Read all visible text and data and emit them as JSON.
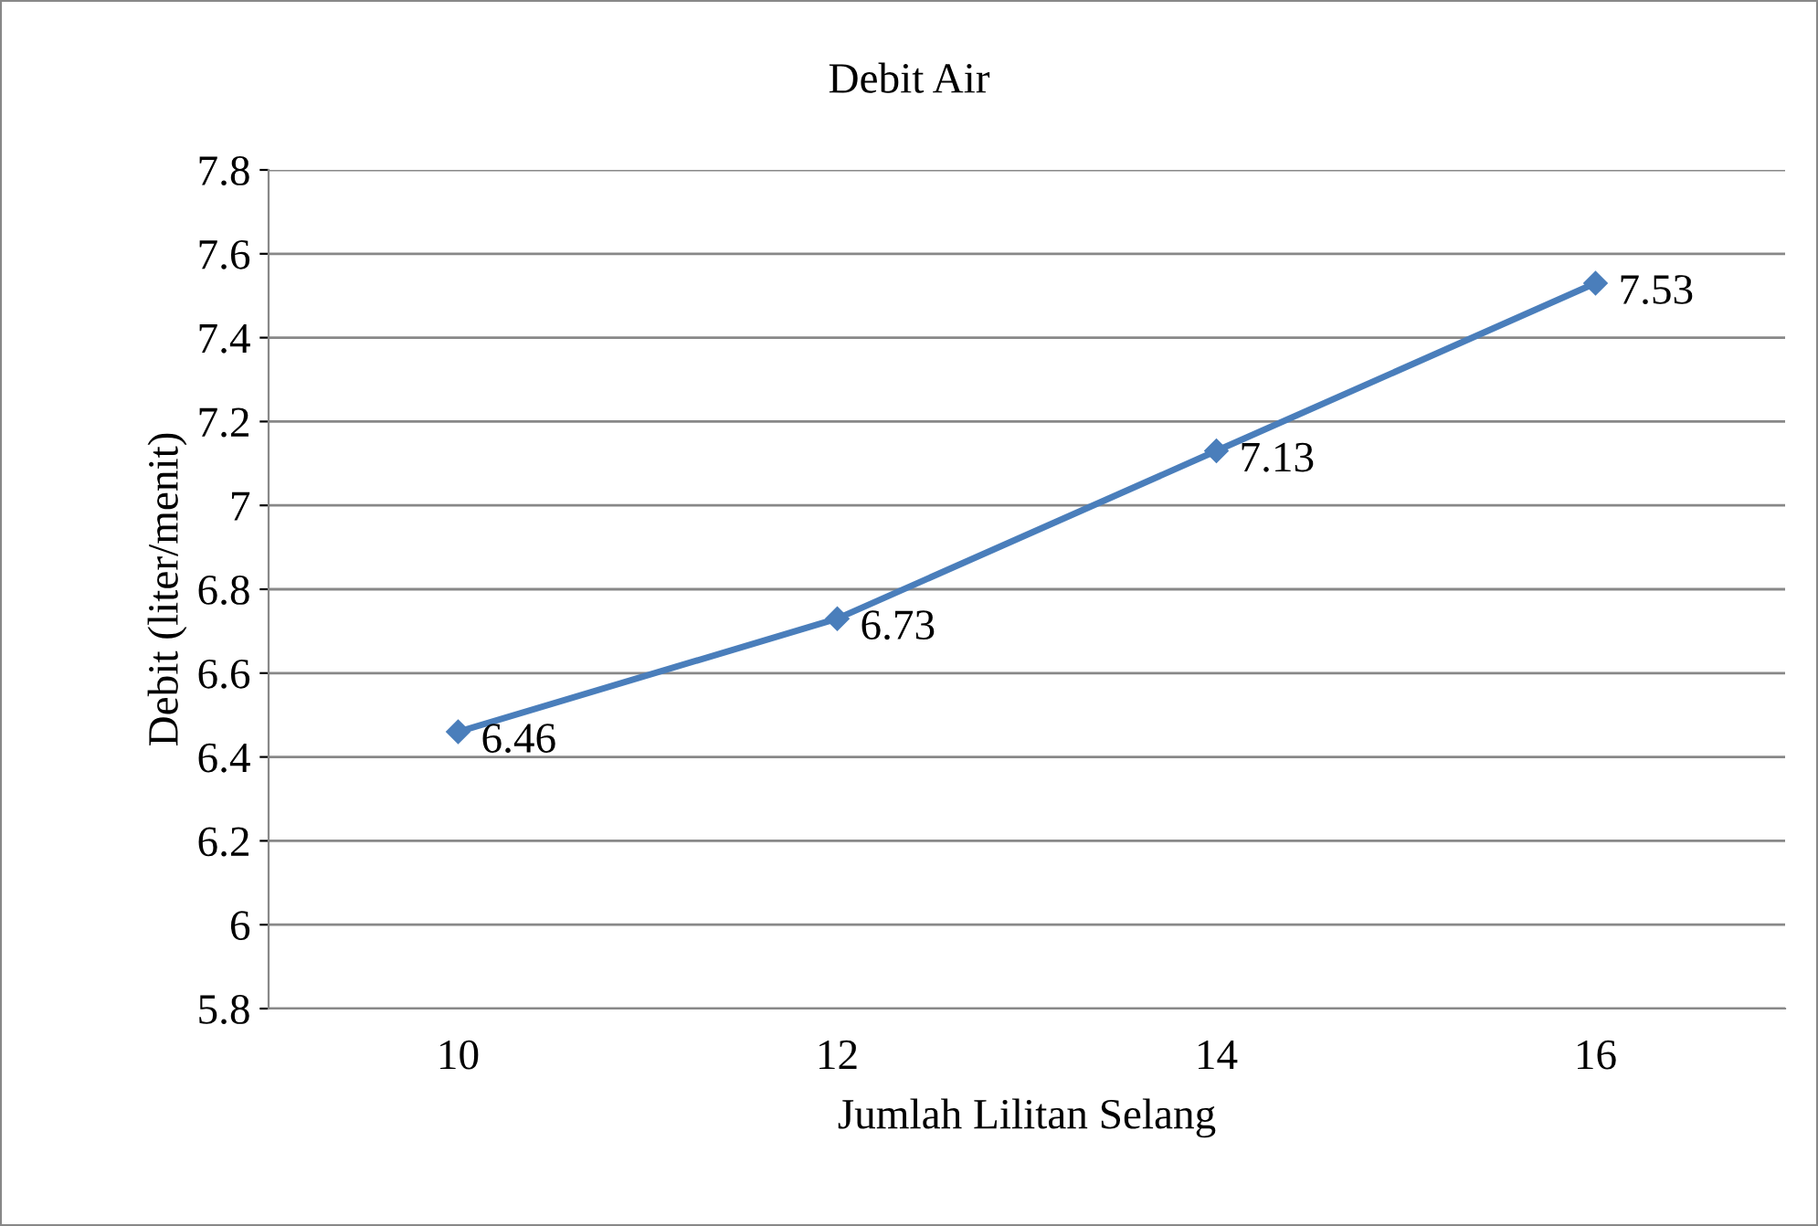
{
  "chart_data": {
    "type": "line",
    "title": "Debit Air",
    "xlabel": "Jumlah Lilitan Selang",
    "ylabel": "Debit (liter/menit)",
    "categories": [
      "10",
      "12",
      "14",
      "16"
    ],
    "series": [
      {
        "color": "#4a7ebb",
        "values": [
          6.46,
          6.73,
          7.13,
          7.53
        ]
      }
    ],
    "ylim": [
      5.8,
      7.8
    ],
    "yticks": [
      5.8,
      6,
      6.2,
      6.4,
      6.6,
      6.8,
      7,
      7.2,
      7.4,
      7.6,
      7.8
    ],
    "grid": "y",
    "marker": "diamond",
    "line_style": "solid",
    "data_labels": true,
    "legend": false
  }
}
